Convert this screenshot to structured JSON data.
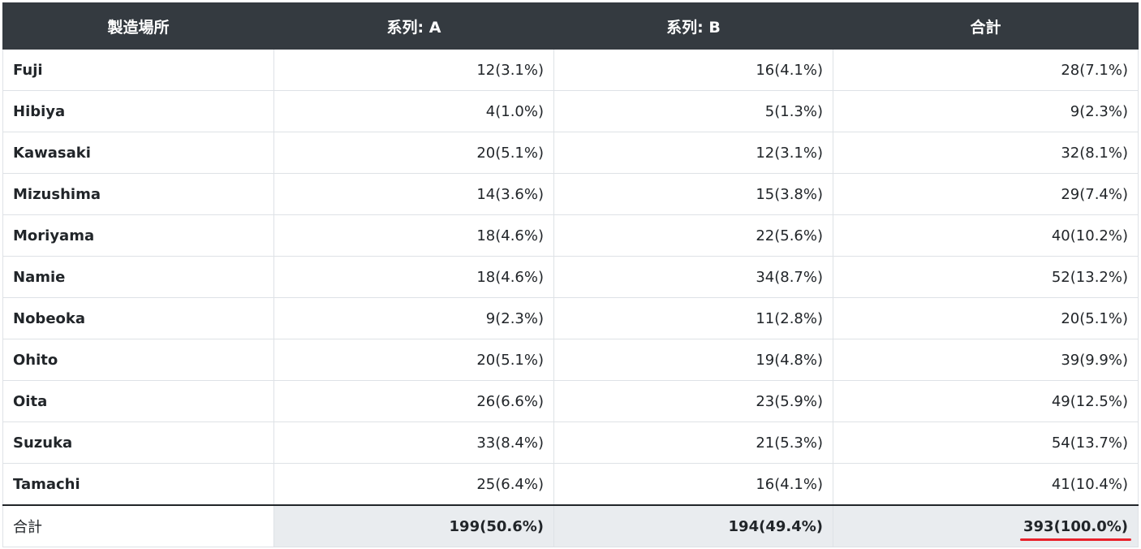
{
  "table": {
    "headers": [
      "製造場所",
      "系列: A",
      "系列: B",
      "合計"
    ],
    "rows": [
      {
        "location": "Fuji",
        "a": "12(3.1%)",
        "b": "16(4.1%)",
        "total": "28(7.1%)"
      },
      {
        "location": "Hibiya",
        "a": "4(1.0%)",
        "b": "5(1.3%)",
        "total": "9(2.3%)"
      },
      {
        "location": "Kawasaki",
        "a": "20(5.1%)",
        "b": "12(3.1%)",
        "total": "32(8.1%)"
      },
      {
        "location": "Mizushima",
        "a": "14(3.6%)",
        "b": "15(3.8%)",
        "total": "29(7.4%)"
      },
      {
        "location": "Moriyama",
        "a": "18(4.6%)",
        "b": "22(5.6%)",
        "total": "40(10.2%)"
      },
      {
        "location": "Namie",
        "a": "18(4.6%)",
        "b": "34(8.7%)",
        "total": "52(13.2%)"
      },
      {
        "location": "Nobeoka",
        "a": "9(2.3%)",
        "b": "11(2.8%)",
        "total": "20(5.1%)"
      },
      {
        "location": "Ohito",
        "a": "20(5.1%)",
        "b": "19(4.8%)",
        "total": "39(9.9%)"
      },
      {
        "location": "Oita",
        "a": "26(6.6%)",
        "b": "23(5.9%)",
        "total": "49(12.5%)"
      },
      {
        "location": "Suzuka",
        "a": "33(8.4%)",
        "b": "21(5.3%)",
        "total": "54(13.7%)"
      },
      {
        "location": "Tamachi",
        "a": "25(6.4%)",
        "b": "16(4.1%)",
        "total": "41(10.4%)"
      }
    ],
    "footer": {
      "location": "合計",
      "a": "199(50.6%)",
      "b": "194(49.4%)",
      "total": "393(100.0%)"
    }
  },
  "colors": {
    "header_bg": "#343a40",
    "footer_bg": "#e9ecef",
    "highlight_underline": "#e8202a"
  }
}
